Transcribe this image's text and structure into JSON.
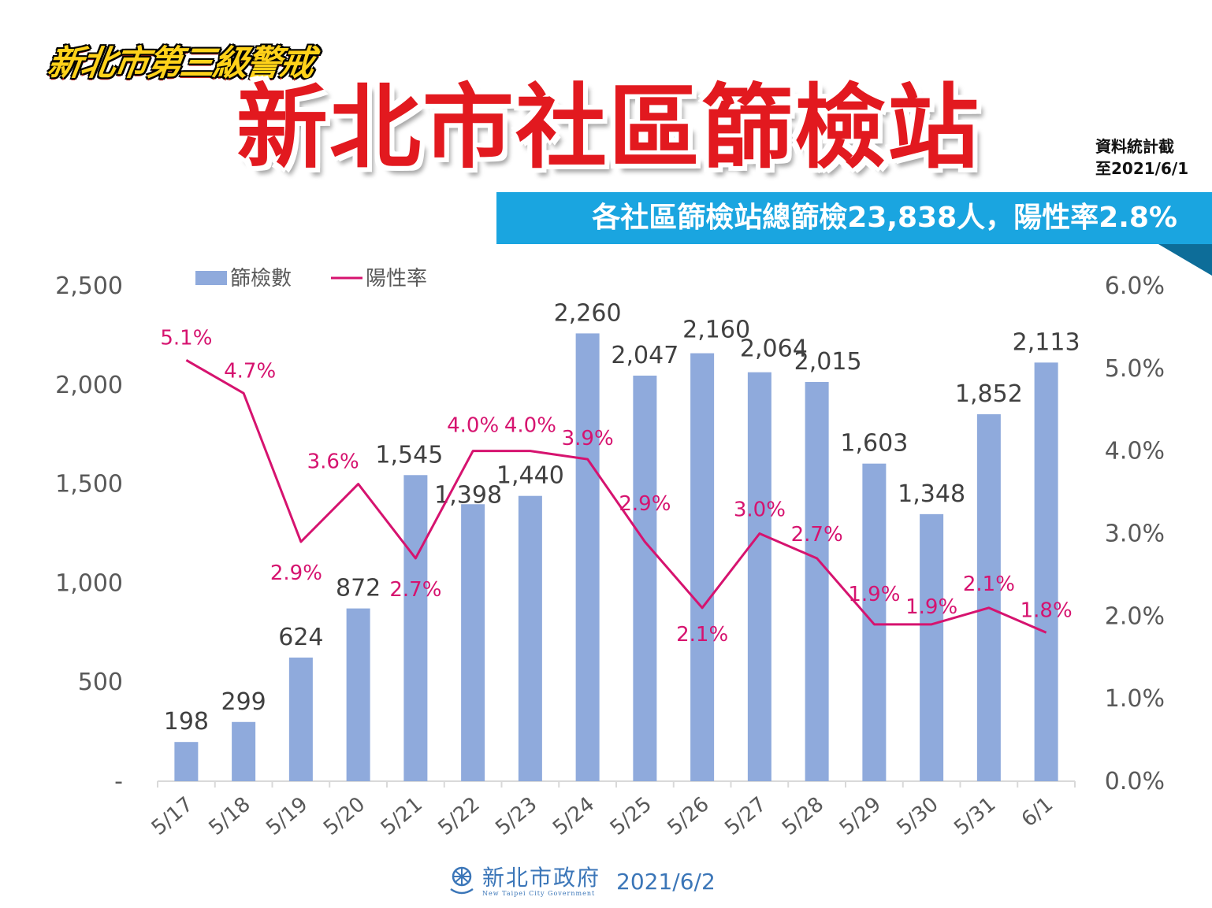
{
  "header": {
    "badge": "新北市第三級警戒",
    "title": "新北市社區篩檢站",
    "as_of_line1": "資料統計截",
    "as_of_line2": "至2021/6/1",
    "summary": "各社區篩檢站總篩檢23,838人，陽性率2.8%"
  },
  "footer": {
    "org": "新北市政府",
    "org_en": "New Taipei City Government",
    "date": "2021/6/2"
  },
  "colors": {
    "bar": "#8faadc",
    "line": "#d6136f",
    "axis_text": "#595959",
    "title_red": "#e2191f",
    "banner": "#1aa5e0"
  },
  "chart_data": {
    "type": "bar+line",
    "categories": [
      "5/17",
      "5/18",
      "5/19",
      "5/20",
      "5/21",
      "5/22",
      "5/23",
      "5/24",
      "5/25",
      "5/26",
      "5/27",
      "5/28",
      "5/29",
      "5/30",
      "5/31",
      "6/1"
    ],
    "series": [
      {
        "name": "篩檢數",
        "type": "bar",
        "axis": "left",
        "values": [
          198,
          299,
          624,
          872,
          1545,
          1398,
          1440,
          2260,
          2047,
          2160,
          2064,
          2015,
          1603,
          1348,
          1852,
          2113
        ],
        "labels": [
          "198",
          "299",
          "624",
          "872",
          "1,545",
          "1,398",
          "1,440",
          "2,260",
          "2,047",
          "2,160",
          "2,064",
          "2,015",
          "1,603",
          "1,348",
          "1,852",
          "2,113"
        ]
      },
      {
        "name": "陽性率",
        "type": "line",
        "axis": "right",
        "values": [
          5.1,
          4.7,
          2.9,
          3.6,
          2.7,
          4.0,
          4.0,
          3.9,
          2.9,
          2.1,
          3.0,
          2.7,
          1.9,
          1.9,
          2.1,
          1.8
        ],
        "labels": [
          "5.1%",
          "4.7%",
          "2.9%",
          "3.6%",
          "2.7%",
          "4.0%",
          "4.0%",
          "3.9%",
          "2.9%",
          "2.1%",
          "3.0%",
          "2.7%",
          "1.9%",
          "1.9%",
          "2.1%",
          "1.8%"
        ]
      }
    ],
    "left_axis": {
      "min": 0,
      "max": 2500,
      "ticks": [
        "-",
        "500",
        "1,000",
        "1,500",
        "2,000",
        "2,500"
      ]
    },
    "right_axis": {
      "min": 0,
      "max": 6,
      "ticks": [
        "0.0%",
        "1.0%",
        "2.0%",
        "3.0%",
        "4.0%",
        "5.0%",
        "6.0%"
      ]
    },
    "legend": {
      "position": "top-left",
      "bar_label": "篩檢數",
      "line_label": "陽性率"
    }
  }
}
